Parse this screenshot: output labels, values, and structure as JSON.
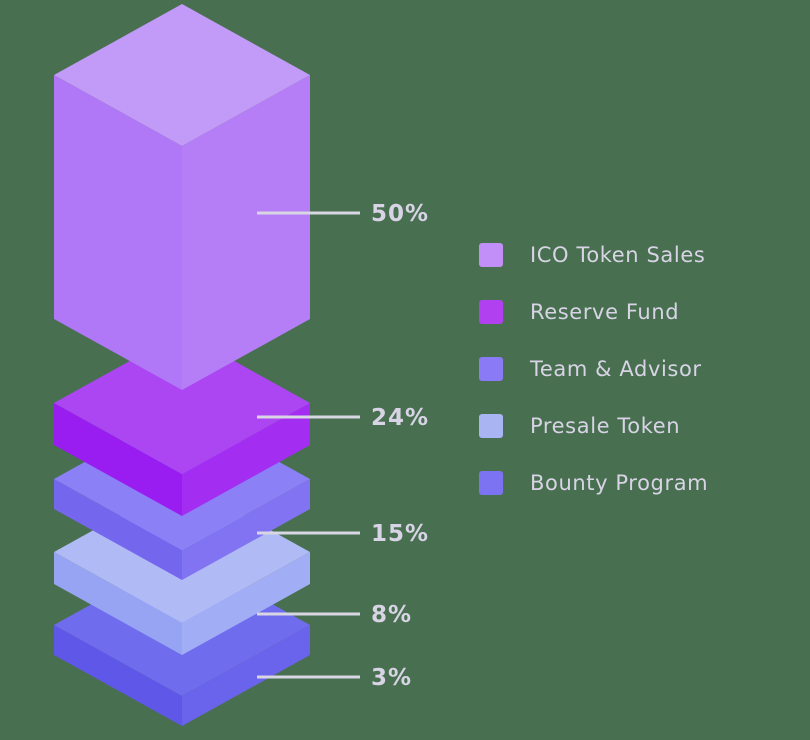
{
  "background_color": "#487050",
  "text_color": "#d8d4e6",
  "leader_line_color": "#d9d6e4",
  "chart_data": {
    "type": "pie",
    "title": "",
    "render_style": "isometric-exploded-stack",
    "categories": [
      "ICO Token Sales",
      "Reserve Fund",
      "Team & Advisor",
      "Presale Token",
      "Bounty Program"
    ],
    "values": [
      50,
      24,
      15,
      8,
      3
    ],
    "value_labels": [
      "50%",
      "24%",
      "15%",
      "8%",
      "3%"
    ],
    "legend_position": "right",
    "colors": [
      "#c18ff7",
      "#b040f0",
      "#8b7af5",
      "#a9b4f3",
      "#7b73f2"
    ]
  },
  "blocks": [
    {
      "name": "ico-token-sales",
      "pct_label": "50%",
      "top": "#c29af7",
      "left": "#b077f7",
      "right": "#b57ef7"
    },
    {
      "name": "reserve-fund",
      "pct_label": "24%",
      "top": "#ab46f2",
      "left": "#991df0",
      "right": "#a32ef2"
    },
    {
      "name": "team-advisor",
      "pct_label": "15%",
      "top": "#8b80f5",
      "left": "#7566ee",
      "right": "#8173f2"
    },
    {
      "name": "presale-token",
      "pct_label": "8%",
      "top": "#b0bbf6",
      "left": "#96a4f3",
      "right": "#a1adf5"
    },
    {
      "name": "bounty-program",
      "pct_label": "3%",
      "top": "#706cee",
      "left": "#5f57e8",
      "right": "#6a63ec"
    }
  ],
  "legend": {
    "items": [
      {
        "label": "ICO Token Sales"
      },
      {
        "label": "Reserve Fund"
      },
      {
        "label": "Team & Advisor"
      },
      {
        "label": "Presale Token"
      },
      {
        "label": "Bounty Program"
      }
    ]
  }
}
